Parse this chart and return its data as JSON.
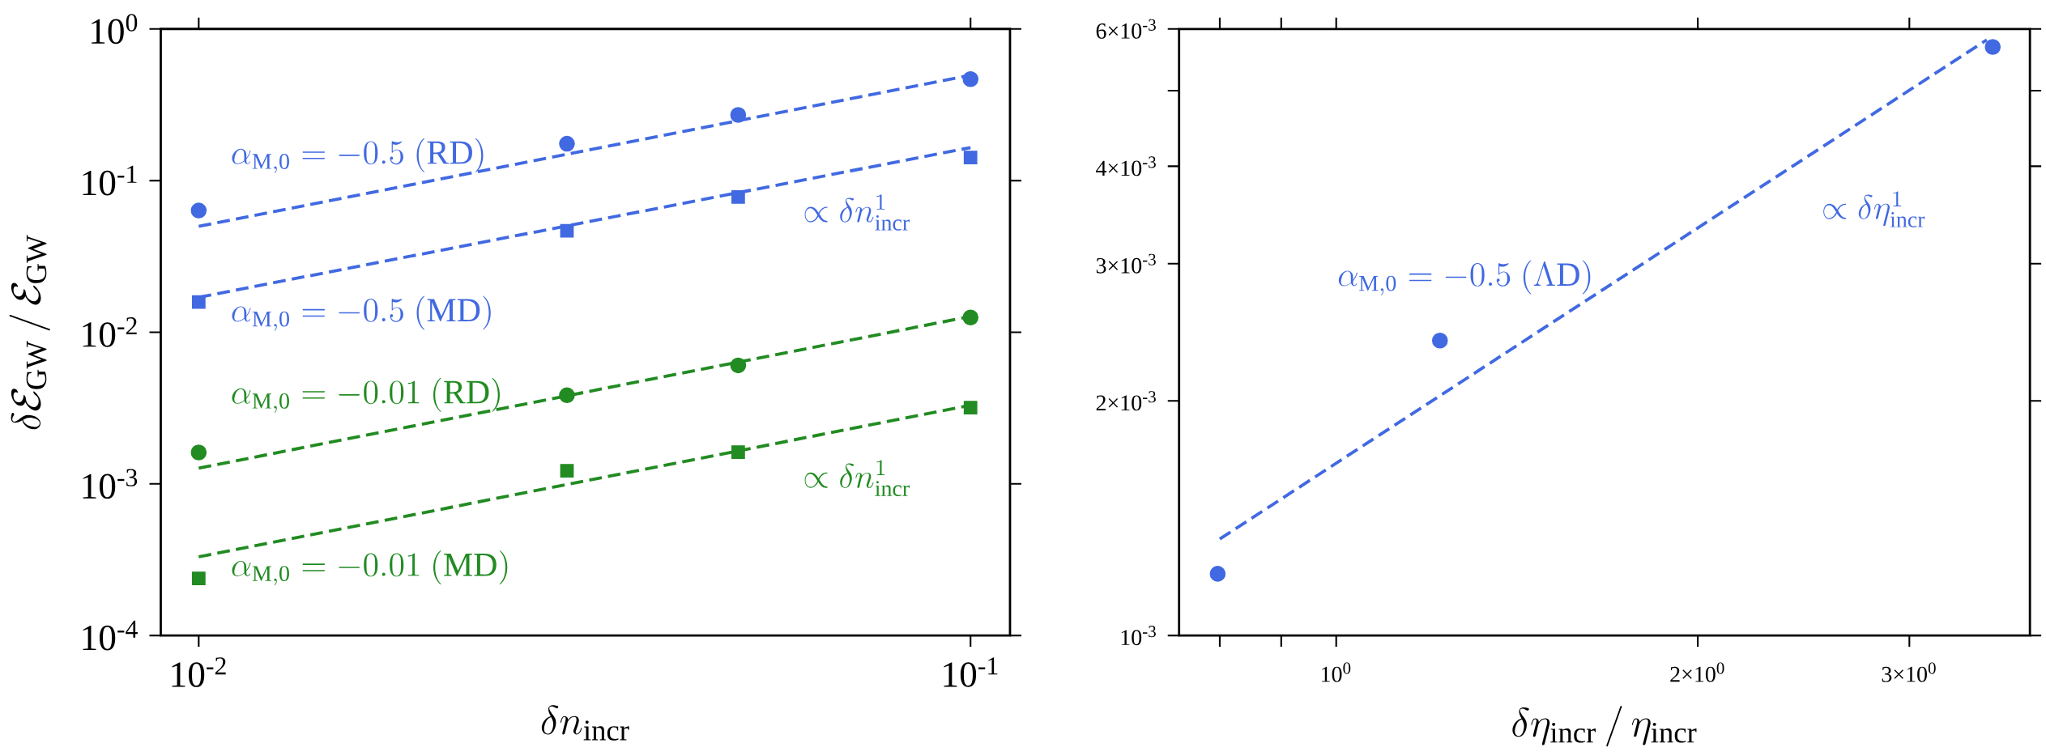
{
  "chart_data": [
    {
      "type": "scatter",
      "log": "xy",
      "xlabel": "\\delta n_{\\rm incr}",
      "ylabel": "\\delta\\mathcal{E}_{\\rm GW}\\,/\\,\\mathcal{E}_{\\rm GW}",
      "xlim": [
        0.00893,
        0.1125
      ],
      "ylim": [
        0.0001,
        1
      ],
      "xticks": [
        {
          "value": 0.01,
          "label": "10$^{-2}$"
        },
        {
          "value": 0.1,
          "label": "10$^{-1}$"
        }
      ],
      "yticks": [
        {
          "value": 0.0001,
          "label": "10$^{-4}$"
        },
        {
          "value": 0.001,
          "label": "10$^{-3}$"
        },
        {
          "value": 0.01,
          "label": "10$^{-2}$"
        },
        {
          "value": 0.1,
          "label": "10$^{-1}$"
        },
        {
          "value": 1,
          "label": "10$^{0}$"
        }
      ],
      "series": [
        {
          "marker": "circle",
          "color": "#4169e1",
          "x": [
            0.01,
            0.03,
            0.05,
            0.1
          ],
          "values": [
            0.0635,
            0.175,
            0.271,
            0.467
          ]
        },
        {
          "marker": "square",
          "color": "#4169e1",
          "x": [
            0.01,
            0.03,
            0.05,
            0.1
          ],
          "values": [
            0.0158,
            0.0466,
            0.078,
            0.142
          ]
        },
        {
          "marker": "circle",
          "color": "#228b22",
          "x": [
            0.01,
            0.03,
            0.05,
            0.1
          ],
          "values": [
            0.00161,
            0.00384,
            0.00604,
            0.0125
          ]
        },
        {
          "marker": "square",
          "color": "#228b22",
          "x": [
            0.01,
            0.03,
            0.05,
            0.1
          ],
          "values": [
            0.000238,
            0.00122,
            0.00162,
            0.00318
          ]
        },
        {
          "type": "line",
          "line_style": "dashed",
          "color": "#4169e1",
          "x": [
            0.01,
            0.1
          ],
          "values": [
            0.0499,
            0.495
          ]
        },
        {
          "type": "line",
          "line_style": "dashed",
          "color": "#4169e1",
          "x": [
            0.01,
            0.1
          ],
          "values": [
            0.017,
            0.165
          ]
        },
        {
          "type": "line",
          "line_style": "dashed",
          "color": "#228b22",
          "x": [
            0.01,
            0.1
          ],
          "values": [
            0.00127,
            0.0127
          ]
        },
        {
          "type": "line",
          "line_style": "dashed",
          "color": "#228b22",
          "x": [
            0.01,
            0.1
          ],
          "values": [
            0.00033,
            0.0033
          ]
        }
      ],
      "annotations": [
        "\\alpha_{\\rm M,0} = -0.5\\ ({\\rm RD})",
        "\\alpha_{\\rm M,0} = -0.5\\ ({\\rm MD})",
        "\\alpha_{\\rm M,0} = -0.01\\ ({\\rm RD})",
        "\\alpha_{\\rm M,0} = -0.01\\ ({\\rm MD})",
        "\\propto \\delta n_{\\rm incr}^{1}",
        "\\propto \\delta n_{\\rm incr}^{1}"
      ]
    },
    {
      "type": "scatter",
      "log": "xy",
      "xlabel": "\\delta\\eta_{\\rm incr}\\,/\\,\\eta_{\\rm incr}",
      "xlim": [
        0.74,
        3.78
      ],
      "ylim": [
        0.001,
        0.006
      ],
      "xticks": [
        {
          "value": 0.8,
          "label": null
        },
        {
          "value": 0.9,
          "label": null
        },
        {
          "value": 1,
          "label": "10$^{0}$"
        },
        {
          "value": 2,
          "label": "2×10$^{0}$"
        },
        {
          "value": 3,
          "label": "3×10$^{0}$"
        }
      ],
      "yticks": [
        {
          "value": 0.001,
          "label": "10$^{-3}$"
        },
        {
          "value": 0.002,
          "label": "2×10$^{-3}$"
        },
        {
          "value": 0.003,
          "label": "3×10$^{-3}$"
        },
        {
          "value": 0.004,
          "label": "4×10$^{-3}$"
        },
        {
          "value": 0.005,
          "label": null
        },
        {
          "value": 0.006,
          "label": "6×10$^{-3}$"
        }
      ],
      "series": [
        {
          "marker": "circle",
          "color": "#4169e1",
          "x": [
            0.797,
            1.22,
            3.52
          ],
          "values": [
            0.0012,
            0.00239,
            0.00569
          ]
        },
        {
          "type": "line",
          "line_style": "dashed",
          "color": "#4169e1",
          "x": [
            0.8,
            3.48
          ],
          "values": [
            0.00133,
            0.00581
          ]
        }
      ],
      "annotations": [
        "\\alpha_{\\rm M,0} = -0.5\\ (\\Lambda{\\rm D})",
        "\\propto\\delta\\eta^{1}_{\\rm incr}"
      ]
    }
  ]
}
